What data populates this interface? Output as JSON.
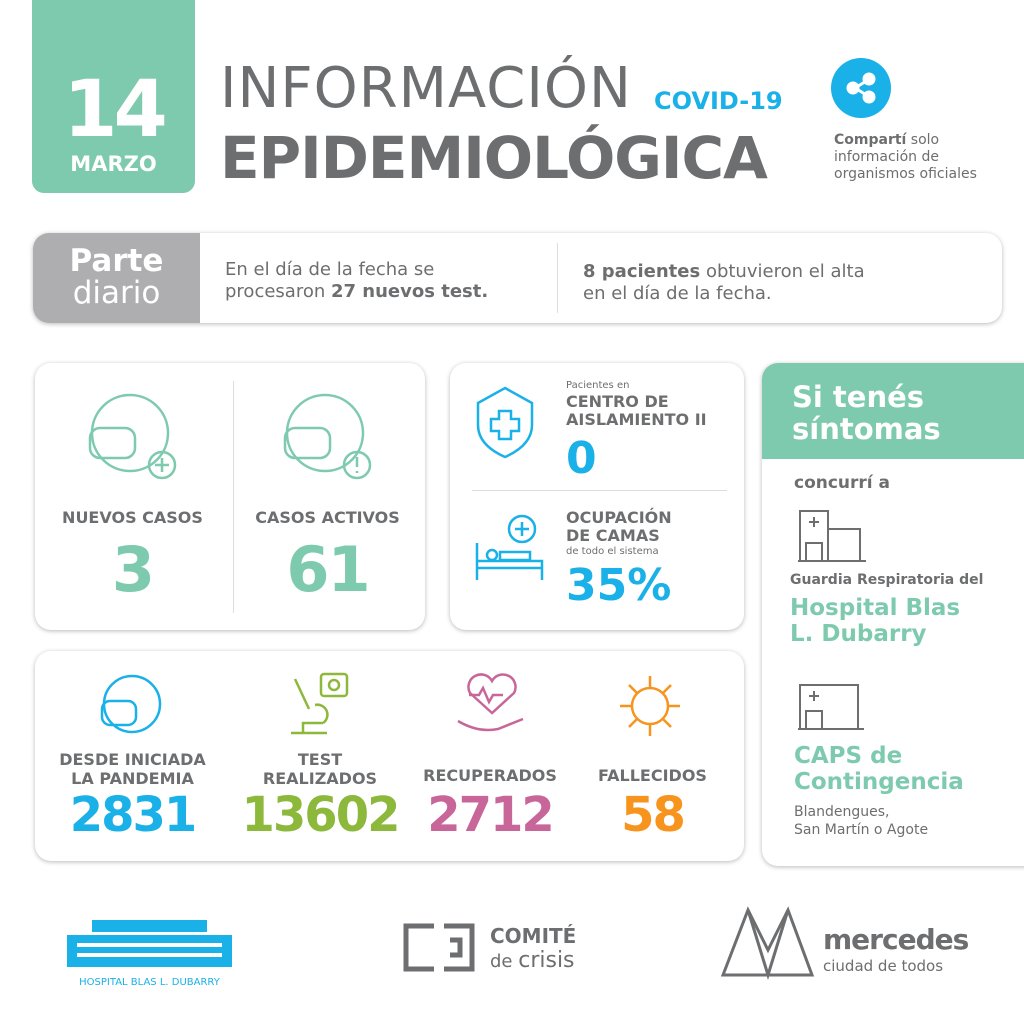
{
  "header": {
    "day": "14",
    "month": "MARZO",
    "title_line1": "INFORMACIÓN",
    "title_tag": "COVID-19",
    "title_line2": "EPIDEMIOLÓGICA",
    "share": {
      "icon": "share-icon",
      "bold": "Compartí",
      "rest1": " solo",
      "line2": "información de",
      "line3": "organismos oficiales"
    }
  },
  "parte": {
    "label1": "Parte",
    "label2": "diario",
    "col1_line1": "En el día de la fecha se",
    "col1_pre": "procesaron ",
    "col1_bold": "27 nuevos test.",
    "col2_bold": "8 pacientes",
    "col2_rest": " obtuvieron el alta",
    "col2_line2": "en el día de la fecha."
  },
  "cases": {
    "new_label": "NUEVOS CASOS",
    "new_value": "3",
    "active_label": "CASOS ACTIVOS",
    "active_value": "61"
  },
  "isolation": {
    "small": "Pacientes en",
    "title1": "CENTRO DE",
    "title2": "AISLAMIENTO II",
    "value": "0"
  },
  "beds": {
    "title1": "OCUPACIÓN",
    "title2": "DE CAMAS",
    "small": "de todo el sistema",
    "value": "35%",
    "percent": 35
  },
  "totals": [
    {
      "label1": "DESDE INICIADA",
      "label2": "LA PANDEMIA",
      "value": "2831",
      "color": "#1ab0e8"
    },
    {
      "label1": "TEST",
      "label2": "REALIZADOS",
      "value": "13602",
      "color": "#8cb83c"
    },
    {
      "label1": "",
      "label2": "RECUPERADOS",
      "value": "2712",
      "color": "#c8669a"
    },
    {
      "label1": "",
      "label2": "FALLECIDOS",
      "value": "58",
      "color": "#f7941d"
    }
  ],
  "symptoms": {
    "title1": "Si tenés",
    "title2": "síntomas",
    "go": "concurrí a",
    "guardia": "Guardia Respiratoria del",
    "hospital1": "Hospital Blas",
    "hospital2": "L. Dubarry",
    "caps1": "CAPS de",
    "caps2": "Contingencia",
    "addr1": "Blandengues,",
    "addr2": "San Martín o Agote"
  },
  "footer": {
    "hospital_logo": "HOSPITAL BLAS L. DUBARRY",
    "comite1": "COMITÉ",
    "comite2_a": "de ",
    "comite2_b": "crisis",
    "mercedes1": "mercedes",
    "mercedes2": "ciudad de todos"
  },
  "colors": {
    "teal": "#7ecaaf",
    "gray": "#6d6e70",
    "blue": "#1ab0e8",
    "green": "#8cb83c",
    "pink": "#c8669a",
    "orange": "#f7941d"
  }
}
